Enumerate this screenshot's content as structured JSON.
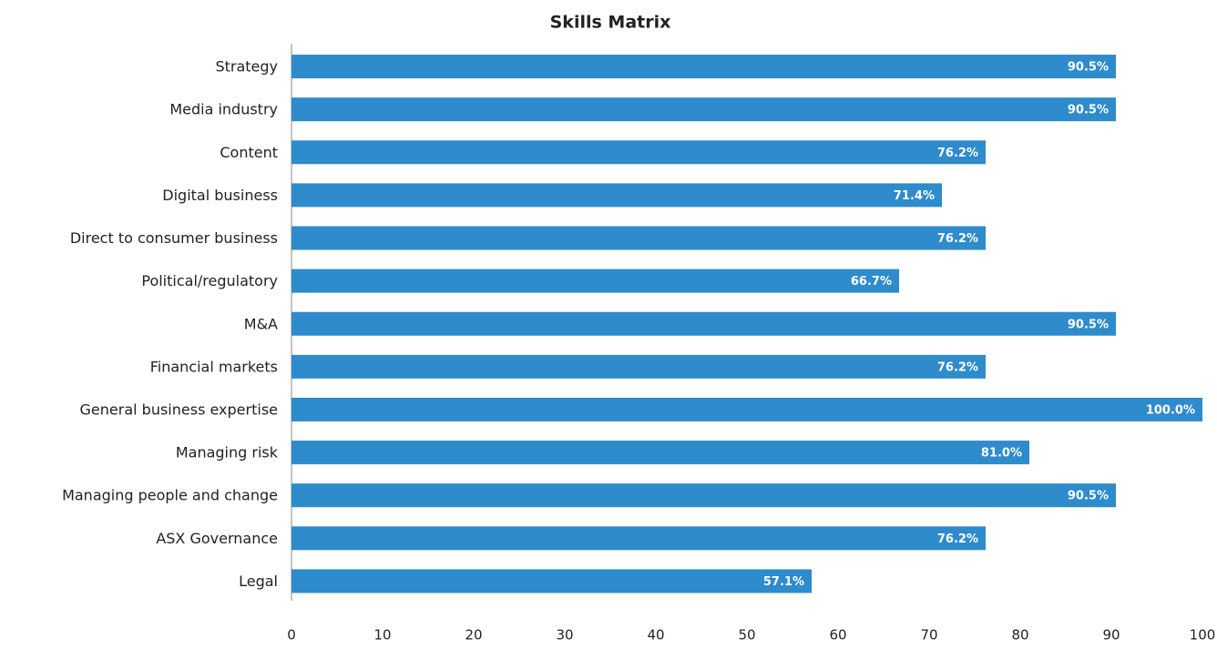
{
  "chart_data": {
    "type": "bar",
    "orientation": "horizontal",
    "title": "Skills Matrix",
    "categories": [
      "Strategy",
      "Media industry",
      "Content",
      "Digital business",
      "Direct to consumer business",
      "Political/regulatory",
      "M&A",
      "Financial markets",
      "General business expertise",
      "Managing risk",
      "Managing people and change",
      "ASX Governance",
      "Legal"
    ],
    "values": [
      90.5,
      90.5,
      76.2,
      71.4,
      76.2,
      66.7,
      90.5,
      76.2,
      100.0,
      81.0,
      90.5,
      76.2,
      57.1
    ],
    "value_labels": [
      "90.5%",
      "90.5%",
      "76.2%",
      "71.4%",
      "76.2%",
      "66.7%",
      "90.5%",
      "76.2%",
      "100.0%",
      "81.0%",
      "90.5%",
      "76.2%",
      "57.1%"
    ],
    "color": "#2e8bcc",
    "xlim": [
      0,
      100
    ],
    "xticks": [
      0,
      10,
      20,
      30,
      40,
      50,
      60,
      70,
      80,
      90,
      100
    ],
    "grid": false
  }
}
